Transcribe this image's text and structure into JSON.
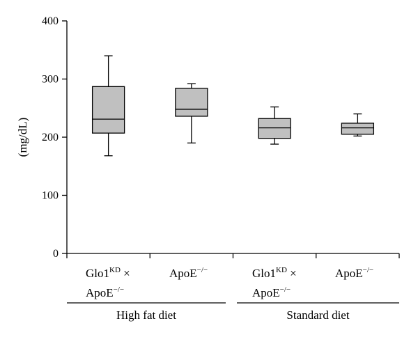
{
  "chart_data": {
    "type": "boxplot",
    "ylabel": "(mg/dL)",
    "ylim": [
      0,
      400
    ],
    "yticks": [
      "0",
      "100",
      "200",
      "300",
      "400"
    ],
    "categories": [
      {
        "base": "Glo1",
        "sup": "KD",
        "suffix": " ×",
        "line2_base": "ApoE",
        "line2_sup": "−/−"
      },
      {
        "base": "ApoE",
        "sup": "−/−",
        "suffix": "",
        "line2_base": "",
        "line2_sup": ""
      },
      {
        "base": "Glo1",
        "sup": "KD",
        "suffix": " ×",
        "line2_base": "ApoE",
        "line2_sup": "−/−"
      },
      {
        "base": "ApoE",
        "sup": "−/−",
        "suffix": "",
        "line2_base": "",
        "line2_sup": ""
      }
    ],
    "boxes": [
      {
        "min": 168,
        "q1": 207,
        "median": 231,
        "q3": 287,
        "max": 340
      },
      {
        "min": 190,
        "q1": 236,
        "median": 248,
        "q3": 284,
        "max": 292
      },
      {
        "min": 188,
        "q1": 198,
        "median": 216,
        "q3": 232,
        "max": 252
      },
      {
        "min": 202,
        "q1": 205,
        "median": 216,
        "q3": 224,
        "max": 240
      }
    ],
    "groups": [
      {
        "label": "High fat diet",
        "span": [
          0,
          1
        ]
      },
      {
        "label": "Standard diet",
        "span": [
          2,
          3
        ]
      }
    ],
    "colors": {
      "box_fill": "#c0c0c0",
      "line": "#000000"
    }
  }
}
